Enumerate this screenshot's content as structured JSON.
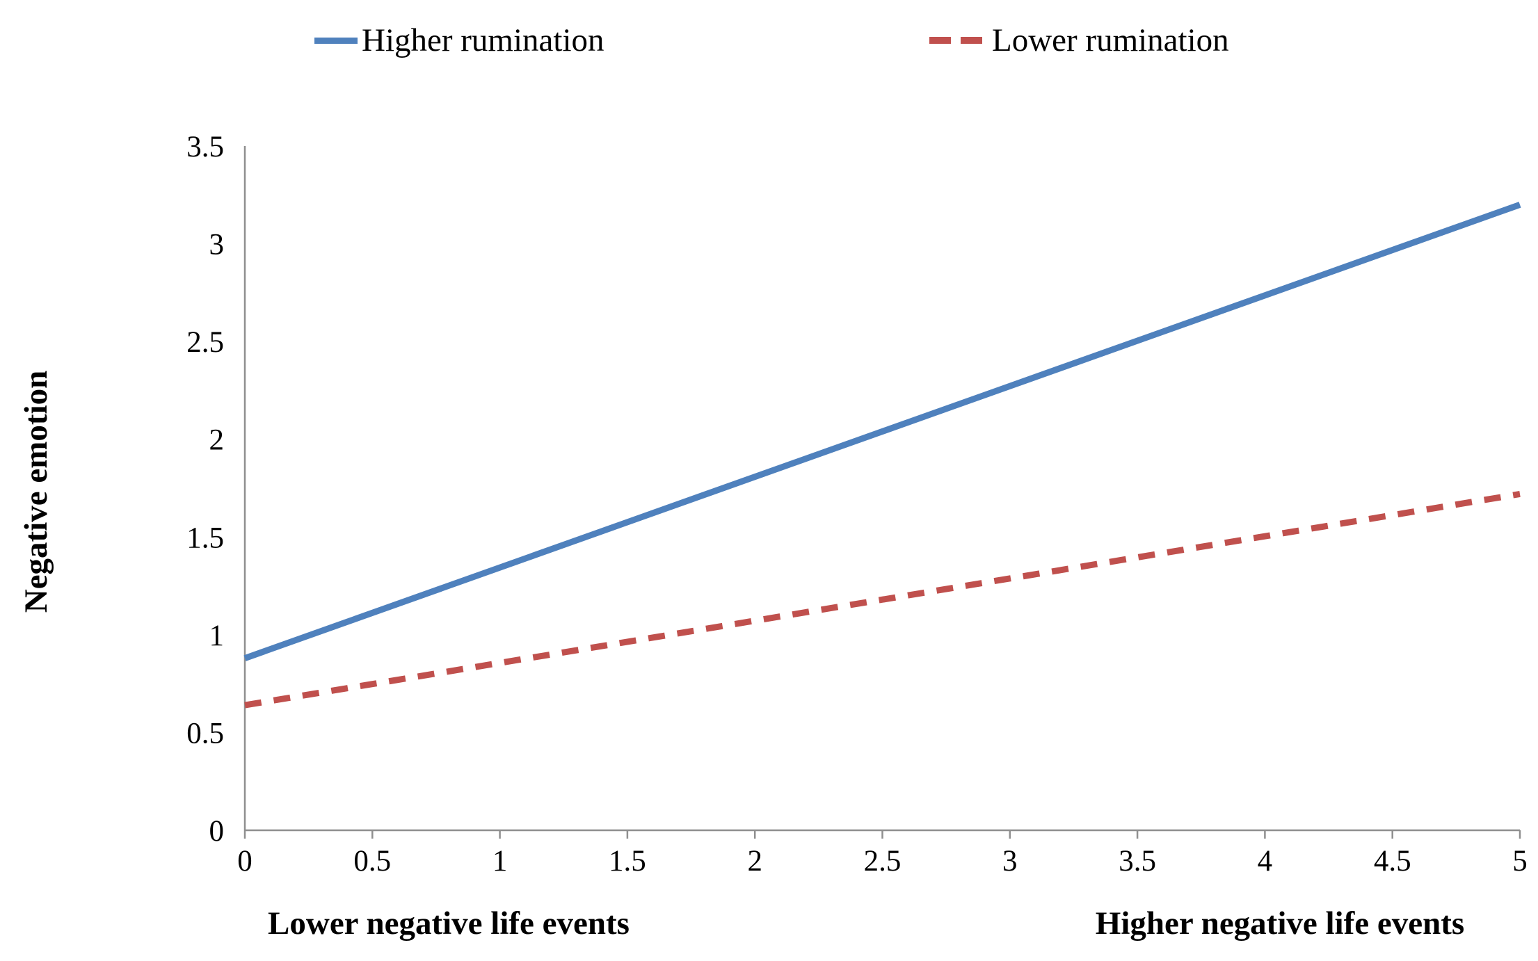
{
  "chart_data": {
    "type": "line",
    "title": "",
    "ylabel": "Negative emotion",
    "x_axis_left_label": "Lower negative life events",
    "x_axis_right_label": "Higher negative life events",
    "xlim": [
      0,
      5
    ],
    "ylim": [
      0,
      3.5
    ],
    "x_ticks": [
      0,
      0.5,
      1,
      1.5,
      2,
      2.5,
      3,
      3.5,
      4,
      4.5,
      5
    ],
    "y_ticks": [
      0,
      0.5,
      1,
      1.5,
      2,
      2.5,
      3,
      3.5
    ],
    "grid": false,
    "legend_position": "top",
    "axis_color": "#8f8f8f",
    "series": [
      {
        "name": "Higher rumination",
        "style": "solid",
        "color": "#4F81BD",
        "x": [
          0,
          5
        ],
        "values": [
          0.88,
          3.2
        ]
      },
      {
        "name": "Lower rumination",
        "style": "dashed",
        "color": "#C0504D",
        "x": [
          0,
          5
        ],
        "values": [
          0.64,
          1.72
        ]
      }
    ]
  }
}
